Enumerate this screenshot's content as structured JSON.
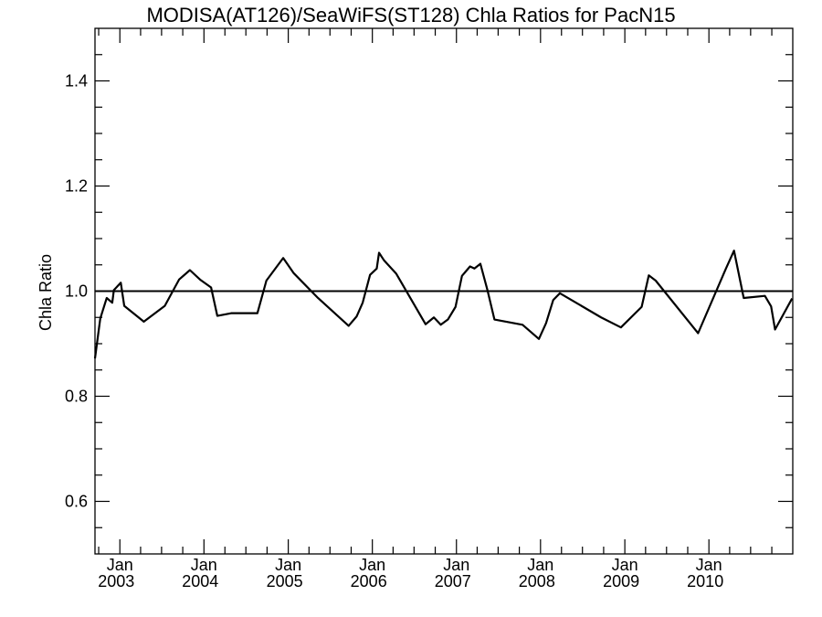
{
  "chart_data": {
    "type": "line",
    "title": "MODISA(AT126)/SeaWiFS(ST128)  Chla Ratios for PacN15",
    "xlabel": "",
    "ylabel": "Chla Ratio",
    "ylim": [
      0.5,
      1.5
    ],
    "xlim": [
      "2002-09-15",
      "2010-12-31"
    ],
    "yticks": [
      "0.6",
      "0.8",
      "1.0",
      "1.2",
      "1.4"
    ],
    "xticks": [
      {
        "month": "Jan",
        "year": "2003",
        "date": "2003-01-01"
      },
      {
        "month": "Jan",
        "year": "2004",
        "date": "2004-01-01"
      },
      {
        "month": "Jan",
        "year": "2005",
        "date": "2005-01-01"
      },
      {
        "month": "Jan",
        "year": "2006",
        "date": "2006-01-01"
      },
      {
        "month": "Jan",
        "year": "2007",
        "date": "2007-01-01"
      },
      {
        "month": "Jan",
        "year": "2008",
        "date": "2008-01-01"
      },
      {
        "month": "Jan",
        "year": "2009",
        "date": "2009-01-01"
      },
      {
        "month": "Jan",
        "year": "2010",
        "date": "2010-01-01"
      }
    ],
    "reference_line": 1.0,
    "grid": false,
    "series": [
      {
        "color": "#000000",
        "points": [
          [
            "2002-09-15",
            0.872
          ],
          [
            "2002-10-08",
            0.948
          ],
          [
            "2002-11-05",
            0.987
          ],
          [
            "2002-11-29",
            0.978
          ],
          [
            "2002-12-06",
            1.002
          ],
          [
            "2003-01-05",
            1.016
          ],
          [
            "2003-01-20",
            0.972
          ],
          [
            "2003-04-15",
            0.942
          ],
          [
            "2003-07-15",
            0.972
          ],
          [
            "2003-09-15",
            1.022
          ],
          [
            "2003-11-01",
            1.04
          ],
          [
            "2003-12-15",
            1.022
          ],
          [
            "2004-02-01",
            1.007
          ],
          [
            "2004-02-28",
            0.953
          ],
          [
            "2004-04-28",
            0.958
          ],
          [
            "2004-08-20",
            0.958
          ],
          [
            "2004-09-28",
            1.02
          ],
          [
            "2004-12-10",
            1.063
          ],
          [
            "2005-01-25",
            1.034
          ],
          [
            "2005-05-10",
            0.987
          ],
          [
            "2005-09-20",
            0.934
          ],
          [
            "2005-10-25",
            0.952
          ],
          [
            "2005-11-20",
            0.978
          ],
          [
            "2005-12-22",
            1.031
          ],
          [
            "2006-01-20",
            1.043
          ],
          [
            "2006-01-30",
            1.073
          ],
          [
            "2006-02-20",
            1.059
          ],
          [
            "2006-04-15",
            1.033
          ],
          [
            "2006-08-20",
            0.937
          ],
          [
            "2006-09-25",
            0.95
          ],
          [
            "2006-10-25",
            0.936
          ],
          [
            "2006-11-25",
            0.946
          ],
          [
            "2006-12-28",
            0.97
          ],
          [
            "2007-01-25",
            1.029
          ],
          [
            "2007-03-01",
            1.047
          ],
          [
            "2007-03-20",
            1.043
          ],
          [
            "2007-04-15",
            1.052
          ],
          [
            "2007-05-15",
            1.003
          ],
          [
            "2007-06-15",
            0.946
          ],
          [
            "2007-10-15",
            0.936
          ],
          [
            "2007-12-25",
            0.909
          ],
          [
            "2008-01-25",
            0.939
          ],
          [
            "2008-02-25",
            0.983
          ],
          [
            "2008-03-25",
            0.996
          ],
          [
            "2008-09-20",
            0.95
          ],
          [
            "2008-12-15",
            0.931
          ],
          [
            "2009-03-15",
            0.97
          ],
          [
            "2009-04-15",
            1.03
          ],
          [
            "2009-05-15",
            1.02
          ],
          [
            "2009-11-15",
            0.92
          ],
          [
            "2010-03-15",
            1.042
          ],
          [
            "2010-04-20",
            1.077
          ],
          [
            "2010-06-01",
            0.987
          ],
          [
            "2010-09-01",
            0.991
          ],
          [
            "2010-09-28",
            0.971
          ],
          [
            "2010-10-15",
            0.927
          ],
          [
            "2010-12-28",
            0.986
          ]
        ]
      }
    ]
  }
}
